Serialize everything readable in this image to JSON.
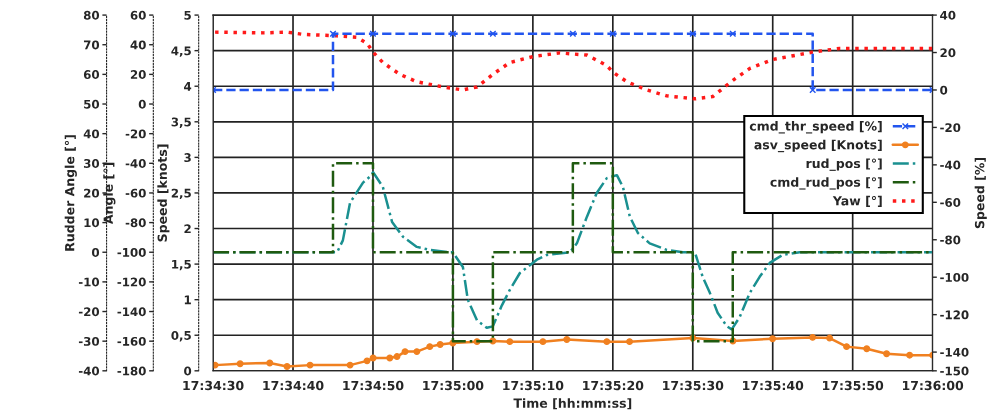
{
  "chart_data": [
    {
      "type": "line",
      "xlabel": "Time [hh:mm:ss]",
      "ylabel": "Speed [knots]",
      "y2label": "Speed [%]",
      "xlim": [
        17.575,
        17.6
      ],
      "xticks": [
        {
          "value": 17.575,
          "label": "17:34:30"
        },
        {
          "value": 17.577778,
          "label": "17:34:40"
        },
        {
          "value": 17.580556,
          "label": "17:34:50"
        },
        {
          "value": 17.583333,
          "label": "17:35:00"
        },
        {
          "value": 17.586111,
          "label": "17:35:10"
        },
        {
          "value": 17.588889,
          "label": "17:35:20"
        },
        {
          "value": 17.591667,
          "label": "17:35:30"
        },
        {
          "value": 17.594444,
          "label": "17:35:40"
        },
        {
          "value": 17.597222,
          "label": "17:35:50"
        },
        {
          "value": 17.6,
          "label": "17:36:00"
        }
      ],
      "ylim": [
        0,
        5
      ],
      "yticks": [
        0,
        {
          "value": 0.5,
          "label": "0,5"
        },
        1,
        {
          "value": 1.5,
          "label": "1,5"
        },
        2,
        {
          "value": 2.5,
          "label": "2,5"
        },
        3,
        {
          "value": 3.5,
          "label": "3,5"
        },
        4,
        {
          "value": 4.5,
          "label": "4,5"
        },
        5
      ],
      "y2lim": [
        -150,
        40
      ],
      "y2ticks": [
        -150,
        -140,
        -120,
        -100,
        -80,
        -60,
        -40,
        -20,
        0,
        20,
        40
      ],
      "grid": true,
      "legend": "right",
      "series": [
        {
          "name": "cmd_thr_speed [%]",
          "type": "step",
          "axis": "y2",
          "color": "#2255ee",
          "line_style": "dashed",
          "marker": "cross",
          "x": [
            17.575,
            17.579167,
            17.580556,
            17.583333,
            17.584722,
            17.5875,
            17.588889,
            17.591667,
            17.593056,
            17.595833,
            17.6
          ],
          "values": [
            0,
            30,
            30,
            30,
            30,
            30,
            30,
            30,
            30,
            0,
            0
          ]
        },
        {
          "name": "asv_speed [Knots]",
          "type": "line",
          "color": "#f08020",
          "line_style": "solid",
          "marker": "circle",
          "x": [
            17.57507,
            17.57594,
            17.57697,
            17.57757,
            17.57837,
            17.57976,
            17.58035,
            17.58056,
            17.58114,
            17.58139,
            17.58167,
            17.58208,
            17.58253,
            17.58289,
            17.58333,
            17.58417,
            17.58472,
            17.58531,
            17.58646,
            17.58729,
            17.58868,
            17.58947,
            17.59167,
            17.59306,
            17.59444,
            17.59583,
            17.59642,
            17.59701,
            17.59771,
            17.5984,
            17.5992,
            17.6
          ],
          "values": [
            0.08,
            0.1,
            0.11,
            0.06,
            0.08,
            0.08,
            0.14,
            0.18,
            0.18,
            0.2,
            0.27,
            0.27,
            0.34,
            0.37,
            0.39,
            0.41,
            0.42,
            0.41,
            0.41,
            0.44,
            0.41,
            0.41,
            0.46,
            0.42,
            0.45,
            0.47,
            0.46,
            0.34,
            0.31,
            0.24,
            0.22,
            0.22
          ]
        }
      ]
    },
    {
      "type": "line",
      "ylabel": "Rudder Angle [°]",
      "tick_labels": "y",
      "legend": "right",
      "xlim": [
        17.575,
        17.6
      ],
      "ylim": [
        -40,
        80
      ],
      "yticks": [
        -40,
        -30,
        -20,
        -10,
        0,
        10,
        20,
        30,
        40,
        50,
        60,
        70,
        80
      ],
      "series": [
        {
          "name": "rud_pos [°]",
          "type": "line",
          "color": "#1a9090",
          "line_style": "dashdot",
          "marker": "none",
          "x": [
            17.575,
            17.57931,
            17.57951,
            17.57976,
            17.58021,
            17.58045,
            17.58056,
            17.5809,
            17.58122,
            17.5816,
            17.58208,
            17.58253,
            17.58323,
            17.58333,
            17.58368,
            17.58385,
            17.58417,
            17.58451,
            17.58472,
            17.58503,
            17.58531,
            17.58566,
            17.58625,
            17.5866,
            17.5874,
            17.58764,
            17.58799,
            17.58833,
            17.58868,
            17.58903,
            17.58924,
            17.58948,
            17.58976,
            17.59017,
            17.59076,
            17.59132,
            17.59174,
            17.59201,
            17.59226,
            17.59253,
            17.59285,
            17.59302,
            17.5933,
            17.59365,
            17.59399,
            17.59434,
            17.59479,
            17.59538,
            17.6
          ],
          "values": [
            0,
            0,
            4,
            16.7,
            23.5,
            25.5,
            27,
            22,
            10.2,
            5.2,
            1.8,
            0.8,
            0,
            0,
            -5,
            -16,
            -23,
            -25.5,
            -25,
            -18,
            -12.7,
            -7,
            -2.5,
            -0.9,
            0,
            3,
            12,
            20,
            25,
            26,
            22,
            12,
            6.5,
            3,
            0.8,
            0,
            0,
            -8.3,
            -13.7,
            -20.4,
            -25,
            -26,
            -21.8,
            -13.7,
            -8.3,
            -3.6,
            -0.9,
            0,
            0
          ]
        },
        {
          "name": "cmd_rud_pos [°]",
          "type": "step",
          "color": "#1f5a10",
          "line_style": "dashdot",
          "marker": "none",
          "x": [
            17.575,
            17.579167,
            17.580556,
            17.583333,
            17.584722,
            17.5875,
            17.588889,
            17.591667,
            17.593056,
            17.6
          ],
          "values": [
            0,
            30,
            0,
            -30,
            0,
            30,
            0,
            -30,
            0,
            0
          ]
        }
      ]
    },
    {
      "type": "line",
      "ylabel": "Angle [°]",
      "tick_labels": "y",
      "legend": "right",
      "xlim": [
        17.575,
        17.6
      ],
      "ylim": [
        -180,
        60
      ],
      "yticks": [
        -180,
        -160,
        -140,
        -120,
        -100,
        -80,
        -60,
        -40,
        -20,
        0,
        20,
        40,
        60
      ],
      "series": [
        {
          "name": "Yaw [°]",
          "color": "#ff1a1a",
          "line_style": "dotted",
          "marker": "none",
          "x": [
            17.57507,
            17.57674,
            17.57757,
            17.57812,
            17.57931,
            17.58,
            17.58035,
            17.58056,
            17.5809,
            17.58149,
            17.58208,
            17.58299,
            17.58368,
            17.58417,
            17.58472,
            17.58531,
            17.58611,
            17.58705,
            17.58799,
            17.58868,
            17.58889,
            17.58938,
            17.59007,
            17.59076,
            17.59174,
            17.59236,
            17.59306,
            17.59365,
            17.59444,
            17.59583,
            17.59677,
            17.6
          ],
          "values": [
            48.5,
            48,
            48.5,
            47,
            46,
            45,
            41,
            35,
            28,
            20,
            15,
            11.5,
            9.5,
            11.5,
            20,
            28,
            32,
            34.5,
            33,
            26,
            21.5,
            15,
            9.5,
            5.5,
            3.5,
            5,
            16,
            24,
            30,
            35,
            37.5,
            37.5
          ]
        }
      ]
    }
  ]
}
